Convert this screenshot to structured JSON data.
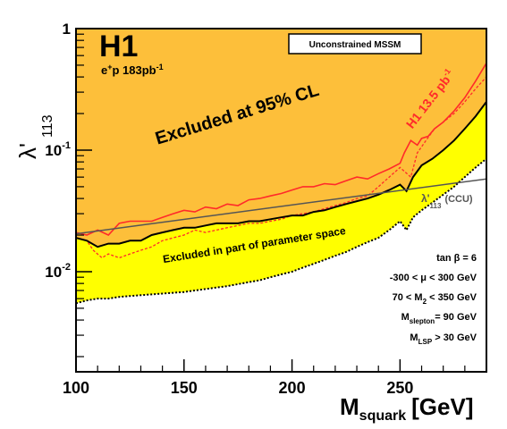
{
  "chart_data": {
    "type": "line",
    "title": "H1",
    "subtitle_prefix": "e",
    "subtitle_sup1": "+",
    "subtitle_mid": "p 183pb",
    "subtitle_sup2": "-1",
    "box_label": "Unconstrained MSSM",
    "xlabel_main": "M",
    "xlabel_sub": "squark",
    "xlabel_unit": "[GeV]",
    "ylabel_main": "λ'",
    "ylabel_sub": "113",
    "xlim": [
      100,
      290
    ],
    "ylim": [
      0.0015,
      1
    ],
    "yscale": "log",
    "x_tick_labels": [
      "100",
      "150",
      "200",
      "250"
    ],
    "x_ticks": [
      100,
      150,
      200,
      250
    ],
    "y_tick_labels": [
      {
        "base": "1",
        "exp": ""
      },
      {
        "base": "10",
        "exp": "-1"
      },
      {
        "base": "10",
        "exp": "-2"
      }
    ],
    "y_ticks": [
      1,
      0.1,
      0.01
    ],
    "annotations": {
      "excluded": "Excluded at 95% CL",
      "partial": "Excluded in part of parameter space",
      "h1_curve": "H1 13.5 pb",
      "h1_curve_sup": "-1",
      "ccu_main": "λ'",
      "ccu_sub": "113",
      "ccu_tail": "(CCU)"
    },
    "params": [
      {
        "pre": "tan β = 6",
        "sub": "",
        "post": ""
      },
      {
        "pre": "-300 < μ < 300 GeV",
        "sub": "",
        "post": ""
      },
      {
        "pre": "70 < M",
        "sub": "2",
        "post": " < 350 GeV"
      },
      {
        "pre": "M",
        "sub": "slepton",
        "post": "= 90 GeV"
      },
      {
        "pre": "M",
        "sub": "LSP",
        "post": " > 30 GeV"
      }
    ],
    "colors": {
      "excluded_fill": "#fdbf3a",
      "partial_fill": "#ffff00",
      "h1_135": "#ff2a2a",
      "ccu": "#555555",
      "black": "#000000"
    },
    "series": [
      {
        "name": "H1 13.5 pb-1",
        "style": "red-solid",
        "x": [
          100,
          105,
          110,
          115,
          120,
          125,
          130,
          135,
          140,
          145,
          150,
          155,
          160,
          165,
          170,
          175,
          180,
          185,
          190,
          195,
          200,
          205,
          210,
          215,
          220,
          225,
          230,
          235,
          240,
          245,
          250,
          252,
          255,
          258,
          260,
          263,
          266,
          270,
          275,
          280,
          285,
          290
        ],
        "y": [
          0.021,
          0.02,
          0.022,
          0.02,
          0.025,
          0.026,
          0.026,
          0.026,
          0.028,
          0.03,
          0.032,
          0.031,
          0.034,
          0.033,
          0.036,
          0.035,
          0.039,
          0.04,
          0.042,
          0.044,
          0.047,
          0.05,
          0.05,
          0.053,
          0.052,
          0.056,
          0.06,
          0.058,
          0.064,
          0.07,
          0.078,
          0.095,
          0.12,
          0.11,
          0.125,
          0.13,
          0.15,
          0.17,
          0.21,
          0.27,
          0.37,
          0.52
        ]
      },
      {
        "name": "excluded-dotted-red",
        "style": "red-dotted",
        "x": [
          100,
          105,
          108,
          112,
          115,
          120,
          125,
          130,
          135,
          140,
          145,
          150,
          155,
          160,
          165,
          170,
          175,
          180,
          185,
          190,
          195,
          200,
          205,
          210,
          215,
          220,
          225,
          230,
          235,
          240,
          245,
          250,
          255,
          258,
          262,
          266,
          270,
          275,
          280,
          285,
          290
        ],
        "y": [
          0.019,
          0.018,
          0.015,
          0.013,
          0.014,
          0.013,
          0.014,
          0.015,
          0.016,
          0.018,
          0.019,
          0.02,
          0.022,
          0.021,
          0.022,
          0.023,
          0.024,
          0.025,
          0.025,
          0.026,
          0.027,
          0.029,
          0.03,
          0.031,
          0.033,
          0.035,
          0.037,
          0.04,
          0.042,
          0.05,
          0.06,
          0.072,
          0.06,
          0.095,
          0.12,
          0.15,
          0.17,
          0.2,
          0.25,
          0.32,
          0.4
        ]
      },
      {
        "name": "excluded-solid-black",
        "style": "black-solid",
        "x": [
          100,
          105,
          110,
          115,
          120,
          125,
          130,
          135,
          140,
          145,
          150,
          155,
          160,
          165,
          170,
          175,
          180,
          185,
          190,
          195,
          200,
          205,
          210,
          215,
          220,
          225,
          230,
          235,
          240,
          245,
          250,
          253,
          256,
          260,
          265,
          270,
          275,
          280,
          285,
          290
        ],
        "y": [
          0.019,
          0.018,
          0.016,
          0.017,
          0.017,
          0.018,
          0.018,
          0.02,
          0.021,
          0.022,
          0.023,
          0.023,
          0.024,
          0.025,
          0.025,
          0.025,
          0.026,
          0.026,
          0.027,
          0.028,
          0.029,
          0.029,
          0.031,
          0.032,
          0.034,
          0.036,
          0.038,
          0.04,
          0.043,
          0.047,
          0.052,
          0.046,
          0.06,
          0.075,
          0.085,
          0.1,
          0.12,
          0.15,
          0.19,
          0.25
        ]
      },
      {
        "name": "partial-dotted-black",
        "style": "black-dotted",
        "x": [
          100,
          105,
          110,
          115,
          120,
          125,
          130,
          135,
          140,
          145,
          150,
          155,
          160,
          165,
          170,
          175,
          180,
          185,
          190,
          195,
          200,
          205,
          210,
          215,
          220,
          225,
          230,
          235,
          240,
          245,
          250,
          253,
          256,
          260,
          265,
          270,
          275,
          280,
          285,
          290
        ],
        "y": [
          0.0055,
          0.0058,
          0.006,
          0.006,
          0.0062,
          0.0063,
          0.0064,
          0.0065,
          0.0066,
          0.0067,
          0.0068,
          0.007,
          0.0072,
          0.0074,
          0.0076,
          0.0079,
          0.0082,
          0.0085,
          0.009,
          0.0095,
          0.01,
          0.0108,
          0.0116,
          0.0125,
          0.0135,
          0.0145,
          0.016,
          0.0175,
          0.019,
          0.022,
          0.026,
          0.022,
          0.028,
          0.032,
          0.037,
          0.043,
          0.05,
          0.06,
          0.072,
          0.085
        ]
      },
      {
        "name": "λ'113 (CCU)",
        "style": "grey-solid",
        "x": [
          100,
          290
        ],
        "y": [
          0.0205,
          0.058
        ]
      }
    ]
  }
}
